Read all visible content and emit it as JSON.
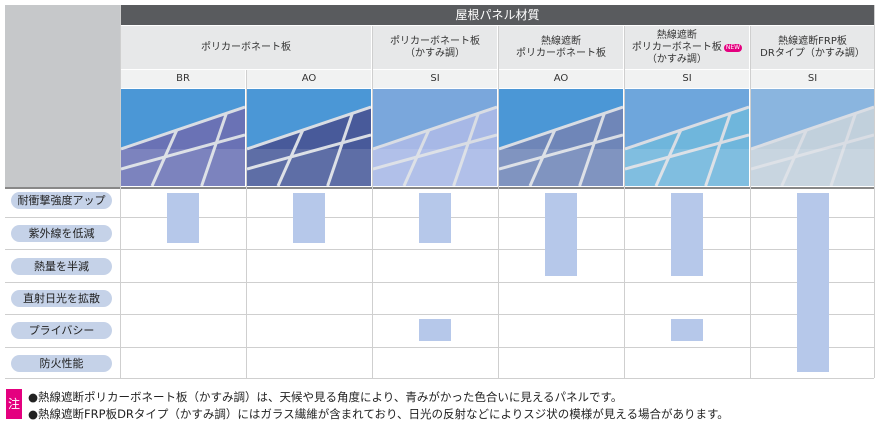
{
  "header": {
    "title": "屋根パネル材質"
  },
  "groups": [
    {
      "label": "ポリカーボネート板"
    },
    {
      "label": "ポリカーボネート板\n（かすみ調）"
    },
    {
      "label": "熱線遮断\nポリカーボネート板"
    },
    {
      "label": "熱線遮断\nポリカーボネート板\n（かすみ調）",
      "badge": "NEW"
    },
    {
      "label": "熱線遮断FRP板\nDRタイプ（かすみ調）"
    }
  ],
  "columns": [
    {
      "code": "BR",
      "sky": "#4b97d6",
      "panel": "#6a72b5"
    },
    {
      "code": "AO",
      "sky": "#4b97d6",
      "panel": "#485a9a"
    },
    {
      "code": "SI",
      "sky": "#7aa7dc",
      "panel": "#a7b8e6"
    },
    {
      "code": "AO",
      "sky": "#4b97d6",
      "panel": "#6f86b8"
    },
    {
      "code": "SI",
      "sky": "#6ea6dc",
      "panel": "#6fb6dc"
    },
    {
      "code": "SI",
      "sky": "#8ab5df",
      "panel": "#c1d0dc"
    }
  ],
  "rows": [
    {
      "label": "耐衝撃強度アップ"
    },
    {
      "label": "紫外線を低減"
    },
    {
      "label": "熱量を半減"
    },
    {
      "label": "直射日光を拡散"
    },
    {
      "label": "プライバシー"
    },
    {
      "label": "防火性能"
    }
  ],
  "features": [
    {
      "column": "BR",
      "rows": [
        "耐衝撃強度アップ",
        "紫外線を低減"
      ]
    },
    {
      "column": "AO",
      "rows": [
        "耐衝撃強度アップ",
        "紫外線を低減"
      ]
    },
    {
      "column": "SI",
      "rows": [
        "耐衝撃強度アップ",
        "紫外線を低減",
        "プライバシー"
      ]
    },
    {
      "column": "AO",
      "rows": [
        "耐衝撃強度アップ",
        "紫外線を低減",
        "熱量を半減"
      ]
    },
    {
      "column": "SI",
      "rows": [
        "耐衝撃強度アップ",
        "紫外線を低減",
        "熱量を半減",
        "プライバシー"
      ]
    },
    {
      "column": "SI",
      "rows": [
        "耐衝撃強度アップ",
        "紫外線を低減",
        "熱量を半減",
        "直射日光を拡散",
        "プライバシー",
        "防火性能"
      ]
    }
  ],
  "notes": {
    "mark": "注",
    "lines": [
      "●熱線遮断ポリカーボネート板（かすみ調）は、天候や見る角度により、青みがかった色合いに見えるパネルです。",
      "●熱線遮断FRP板DRタイプ（かすみ調）にはガラス繊維が含まれており、日光の反射などによりスジ状の模様が見える場合があります。"
    ]
  },
  "colors": {
    "header": "#595b5e",
    "bar": "#b6c8ea",
    "label_pill": "#c5d2e8",
    "note_mark": "#e4007f"
  }
}
